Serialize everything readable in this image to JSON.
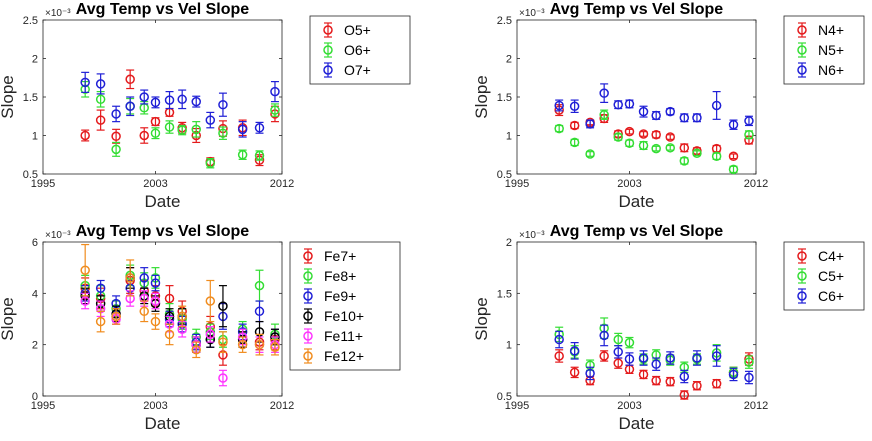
{
  "chart_data": [
    {
      "type": "scatter",
      "title": "Avg Temp vs Vel Slope",
      "xlabel": "Date",
      "ylabel": "Slope",
      "exponent": "×10⁻³",
      "xlim": [
        1995,
        2012
      ],
      "ylim": [
        0.5,
        2.5
      ],
      "xticks": [
        "1995",
        "2003",
        "2012"
      ],
      "yticks": [
        "0.5",
        "1",
        "1.5",
        "2",
        "2.5"
      ],
      "yticks_values": [
        0.5,
        1,
        1.5,
        2,
        2.5
      ],
      "legend_position": "top-right",
      "series": [
        {
          "name": "O5+",
          "color": "#e41a1c",
          "x": [
            1998.0,
            1999.1,
            2000.2,
            2001.2,
            2002.2,
            2003.0,
            2004.0,
            2004.9,
            2005.9,
            2006.9,
            2007.8,
            2009.2,
            2010.4,
            2011.5
          ],
          "y": [
            1.0,
            1.2,
            0.99,
            1.73,
            1.0,
            1.18,
            1.3,
            1.1,
            1.0,
            0.66,
            1.09,
            1.1,
            0.68,
            1.28
          ],
          "err": [
            0.07,
            0.13,
            0.09,
            0.12,
            0.1,
            0.05,
            0.05,
            0.07,
            0.09,
            0.05,
            0.1,
            0.1,
            0.07,
            0.1
          ]
        },
        {
          "name": "O6+",
          "color": "#33dd33",
          "x": [
            1998.0,
            1999.1,
            2000.2,
            2001.2,
            2002.2,
            2003.0,
            2004.0,
            2004.9,
            2005.9,
            2006.9,
            2007.8,
            2009.2,
            2010.4,
            2011.5
          ],
          "y": [
            1.6,
            1.47,
            0.82,
            1.38,
            1.36,
            1.03,
            1.11,
            1.07,
            1.08,
            0.64,
            1.03,
            0.75,
            0.74,
            1.33
          ],
          "err": [
            0.1,
            0.1,
            0.09,
            0.1,
            0.08,
            0.07,
            0.08,
            0.06,
            0.1,
            0.06,
            0.08,
            0.06,
            0.06,
            0.08
          ]
        },
        {
          "name": "O7+",
          "color": "#1f1fd6",
          "x": [
            1998.0,
            1999.1,
            2000.2,
            2001.2,
            2002.2,
            2003.0,
            2004.0,
            2004.9,
            2005.9,
            2006.9,
            2007.8,
            2009.2,
            2010.4,
            2011.5
          ],
          "y": [
            1.69,
            1.67,
            1.28,
            1.38,
            1.5,
            1.43,
            1.46,
            1.47,
            1.44,
            1.2,
            1.4,
            1.08,
            1.1,
            1.57
          ],
          "err": [
            0.13,
            0.13,
            0.1,
            0.12,
            0.09,
            0.07,
            0.11,
            0.12,
            0.07,
            0.1,
            0.15,
            0.1,
            0.07,
            0.13
          ]
        }
      ]
    },
    {
      "type": "scatter",
      "title": "Avg Temp vs Vel Slope",
      "xlabel": "Date",
      "ylabel": "Slope",
      "exponent": "×10⁻³",
      "xlim": [
        1995,
        2012
      ],
      "ylim": [
        0.5,
        2.5
      ],
      "xticks": [
        "1995",
        "2003",
        "2012"
      ],
      "yticks": [
        "0.5",
        "1",
        "1.5",
        "2",
        "2.5"
      ],
      "yticks_values": [
        0.5,
        1,
        1.5,
        2,
        2.5
      ],
      "legend_position": "top-right",
      "series": [
        {
          "name": "N4+",
          "color": "#e41a1c",
          "x": [
            1998.0,
            1999.1,
            2000.2,
            2001.2,
            2002.2,
            2003.0,
            2004.0,
            2004.9,
            2005.9,
            2006.9,
            2007.8,
            2009.2,
            2010.4,
            2011.5
          ],
          "y": [
            1.33,
            1.13,
            1.17,
            1.22,
            1.02,
            1.05,
            1.02,
            1.01,
            0.98,
            0.84,
            0.8,
            0.83,
            0.73,
            0.94
          ],
          "err": [
            0.07,
            0.04,
            0.03,
            0.05,
            0.04,
            0.03,
            0.03,
            0.04,
            0.03,
            0.05,
            0.04,
            0.04,
            0.03,
            0.05
          ]
        },
        {
          "name": "N5+",
          "color": "#33dd33",
          "x": [
            1998.0,
            1999.1,
            2000.2,
            2001.2,
            2002.2,
            2003.0,
            2004.0,
            2004.9,
            2005.9,
            2006.9,
            2007.8,
            2009.2,
            2010.4,
            2011.5
          ],
          "y": [
            1.09,
            0.91,
            0.76,
            1.27,
            0.98,
            0.9,
            0.87,
            0.83,
            0.84,
            0.67,
            0.77,
            0.73,
            0.56,
            1.01
          ],
          "err": [
            0.04,
            0.04,
            0.03,
            0.06,
            0.04,
            0.04,
            0.05,
            0.03,
            0.03,
            0.04,
            0.03,
            0.04,
            0.04,
            0.05
          ]
        },
        {
          "name": "N6+",
          "color": "#1f1fd6",
          "x": [
            1998.0,
            1999.1,
            2000.2,
            2001.2,
            2002.2,
            2003.0,
            2004.0,
            2004.9,
            2005.9,
            2006.9,
            2007.8,
            2009.2,
            2010.4,
            2011.5
          ],
          "y": [
            1.39,
            1.38,
            1.15,
            1.55,
            1.4,
            1.41,
            1.31,
            1.26,
            1.31,
            1.23,
            1.23,
            1.39,
            1.14,
            1.19
          ],
          "err": [
            0.07,
            0.08,
            0.05,
            0.12,
            0.05,
            0.05,
            0.07,
            0.05,
            0.04,
            0.05,
            0.05,
            0.18,
            0.06,
            0.06
          ]
        }
      ]
    },
    {
      "type": "scatter",
      "title": "Avg Temp vs Vel Slope",
      "xlabel": "Date",
      "ylabel": "Slope",
      "exponent": "×10⁻³",
      "xlim": [
        1995,
        2012
      ],
      "ylim": [
        0,
        6
      ],
      "xticks": [
        "1995",
        "2003",
        "2012"
      ],
      "yticks": [
        "0",
        "2",
        "4",
        "6"
      ],
      "yticks_values": [
        0,
        2,
        4,
        6
      ],
      "legend_position": "top-right",
      "series": [
        {
          "name": "Fe7+",
          "color": "#e41a1c",
          "x": [
            1998.0,
            1999.1,
            2000.2,
            2001.2,
            2002.2,
            2003.0,
            2004.0,
            2004.9,
            2005.9,
            2006.9,
            2007.8,
            2009.2,
            2010.4,
            2011.5
          ],
          "y": [
            4.2,
            3.8,
            3.1,
            4.5,
            4.1,
            3.9,
            3.8,
            3.3,
            2.0,
            2.7,
            1.6,
            2.2,
            2.1,
            2.2
          ],
          "err": [
            0.4,
            0.4,
            0.3,
            0.5,
            0.4,
            0.4,
            0.5,
            0.4,
            0.3,
            0.4,
            0.4,
            0.3,
            0.3,
            0.4
          ]
        },
        {
          "name": "Fe8+",
          "color": "#33dd33",
          "x": [
            1998.0,
            1999.1,
            2000.2,
            2001.2,
            2002.2,
            2003.0,
            2004.0,
            2004.9,
            2005.9,
            2006.9,
            2007.8,
            2009.2,
            2010.4,
            2011.5
          ],
          "y": [
            4.3,
            3.9,
            3.4,
            4.7,
            4.4,
            4.6,
            3.2,
            3.0,
            2.3,
            2.5,
            2.2,
            2.6,
            4.3,
            2.4
          ],
          "err": [
            0.4,
            0.4,
            0.3,
            0.4,
            0.4,
            0.4,
            0.4,
            0.4,
            0.3,
            0.3,
            0.3,
            0.3,
            0.6,
            0.4
          ]
        },
        {
          "name": "Fe9+",
          "color": "#1f1fd6",
          "x": [
            1998.0,
            1999.1,
            2000.2,
            2001.2,
            2002.2,
            2003.0,
            2004.0,
            2004.9,
            2005.9,
            2006.9,
            2007.8,
            2009.2,
            2010.4,
            2011.5
          ],
          "y": [
            4.0,
            4.2,
            3.6,
            4.2,
            4.6,
            4.4,
            3.0,
            2.8,
            2.1,
            2.2,
            3.1,
            2.5,
            3.3,
            2.3
          ],
          "err": [
            0.3,
            0.3,
            0.3,
            0.3,
            0.4,
            0.3,
            0.3,
            0.3,
            0.3,
            0.3,
            0.5,
            0.3,
            0.4,
            0.3
          ]
        },
        {
          "name": "Fe10+",
          "color": "#000000",
          "x": [
            1998.0,
            1999.1,
            2000.2,
            2001.2,
            2002.2,
            2003.0,
            2004.0,
            2004.9,
            2005.9,
            2006.9,
            2007.8,
            2009.2,
            2010.4,
            2011.5
          ],
          "y": [
            3.9,
            3.6,
            3.2,
            4.6,
            3.9,
            3.6,
            3.1,
            3.1,
            2.0,
            2.2,
            3.5,
            2.2,
            2.5,
            2.3
          ],
          "err": [
            0.3,
            0.3,
            0.3,
            0.4,
            0.3,
            0.3,
            0.3,
            0.3,
            0.3,
            0.3,
            0.8,
            0.3,
            0.4,
            0.3
          ]
        },
        {
          "name": "Fe11+",
          "color": "#ff33ff",
          "x": [
            1998.0,
            1999.1,
            2000.2,
            2001.2,
            2002.2,
            2003.0,
            2004.0,
            2004.9,
            2005.9,
            2006.9,
            2007.8,
            2009.2,
            2010.4,
            2011.5
          ],
          "y": [
            3.7,
            3.4,
            3.0,
            3.8,
            3.8,
            3.7,
            2.8,
            2.6,
            2.0,
            2.4,
            0.7,
            2.3,
            2.0,
            2.0
          ],
          "err": [
            0.3,
            0.3,
            0.2,
            0.3,
            0.3,
            0.3,
            0.3,
            0.3,
            0.3,
            0.3,
            0.3,
            0.3,
            0.3,
            0.3
          ]
        },
        {
          "name": "Fe12+",
          "color": "#f08c1e",
          "x": [
            1998.0,
            1999.1,
            2000.2,
            2001.2,
            2002.2,
            2003.0,
            2004.0,
            2004.9,
            2005.9,
            2006.9,
            2007.8,
            2009.2,
            2010.4,
            2011.5
          ],
          "y": [
            4.9,
            2.9,
            3.1,
            4.6,
            3.3,
            2.9,
            2.4,
            3.1,
            1.8,
            3.7,
            2.1,
            2.0,
            2.0,
            1.9
          ],
          "err": [
            1.0,
            0.4,
            0.3,
            0.7,
            0.4,
            0.3,
            0.4,
            0.4,
            0.3,
            0.8,
            0.4,
            0.3,
            0.4,
            0.3
          ]
        }
      ]
    },
    {
      "type": "scatter",
      "title": "Avg Temp vs Vel Slope",
      "xlabel": "Date",
      "ylabel": "Slope",
      "exponent": "×10⁻³",
      "xlim": [
        1995,
        2012
      ],
      "ylim": [
        0.5,
        2
      ],
      "xticks": [
        "1995",
        "2003",
        "2012"
      ],
      "yticks": [
        "0.5",
        "1",
        "1.5",
        "2"
      ],
      "yticks_values": [
        0.5,
        1,
        1.5,
        2
      ],
      "legend_position": "top-right",
      "series": [
        {
          "name": "C4+",
          "color": "#e41a1c",
          "x": [
            1998.0,
            1999.1,
            2000.2,
            2001.2,
            2002.2,
            2003.0,
            2004.0,
            2004.9,
            2005.9,
            2006.9,
            2007.8,
            2009.2,
            2010.4,
            2011.5
          ],
          "y": [
            0.89,
            0.73,
            0.65,
            0.89,
            0.82,
            0.76,
            0.71,
            0.65,
            0.64,
            0.51,
            0.6,
            0.62,
            0.73,
            0.86
          ],
          "err": [
            0.06,
            0.05,
            0.04,
            0.05,
            0.05,
            0.04,
            0.04,
            0.04,
            0.04,
            0.04,
            0.04,
            0.04,
            0.05,
            0.06
          ]
        },
        {
          "name": "C5+",
          "color": "#33dd33",
          "x": [
            1998.0,
            1999.1,
            2000.2,
            2001.2,
            2002.2,
            2003.0,
            2004.0,
            2004.9,
            2005.9,
            2006.9,
            2007.8,
            2009.2,
            2010.4,
            2011.5
          ],
          "y": [
            1.1,
            0.93,
            0.8,
            1.16,
            1.05,
            1.02,
            0.86,
            0.9,
            0.85,
            0.78,
            0.86,
            0.92,
            0.73,
            0.83
          ],
          "err": [
            0.07,
            0.06,
            0.05,
            0.1,
            0.06,
            0.05,
            0.05,
            0.05,
            0.05,
            0.05,
            0.05,
            0.08,
            0.05,
            0.06
          ]
        },
        {
          "name": "C6+",
          "color": "#1f1fd6",
          "x": [
            1998.0,
            1999.1,
            2000.2,
            2001.2,
            2002.2,
            2003.0,
            2004.0,
            2004.9,
            2005.9,
            2006.9,
            2007.8,
            2009.2,
            2010.4,
            2011.5
          ],
          "y": [
            1.05,
            0.94,
            0.72,
            1.09,
            0.93,
            0.86,
            0.87,
            0.81,
            0.87,
            0.69,
            0.87,
            0.89,
            0.71,
            0.68
          ],
          "err": [
            0.08,
            0.08,
            0.06,
            0.1,
            0.06,
            0.06,
            0.07,
            0.06,
            0.06,
            0.06,
            0.07,
            0.1,
            0.06,
            0.06
          ]
        }
      ]
    }
  ]
}
